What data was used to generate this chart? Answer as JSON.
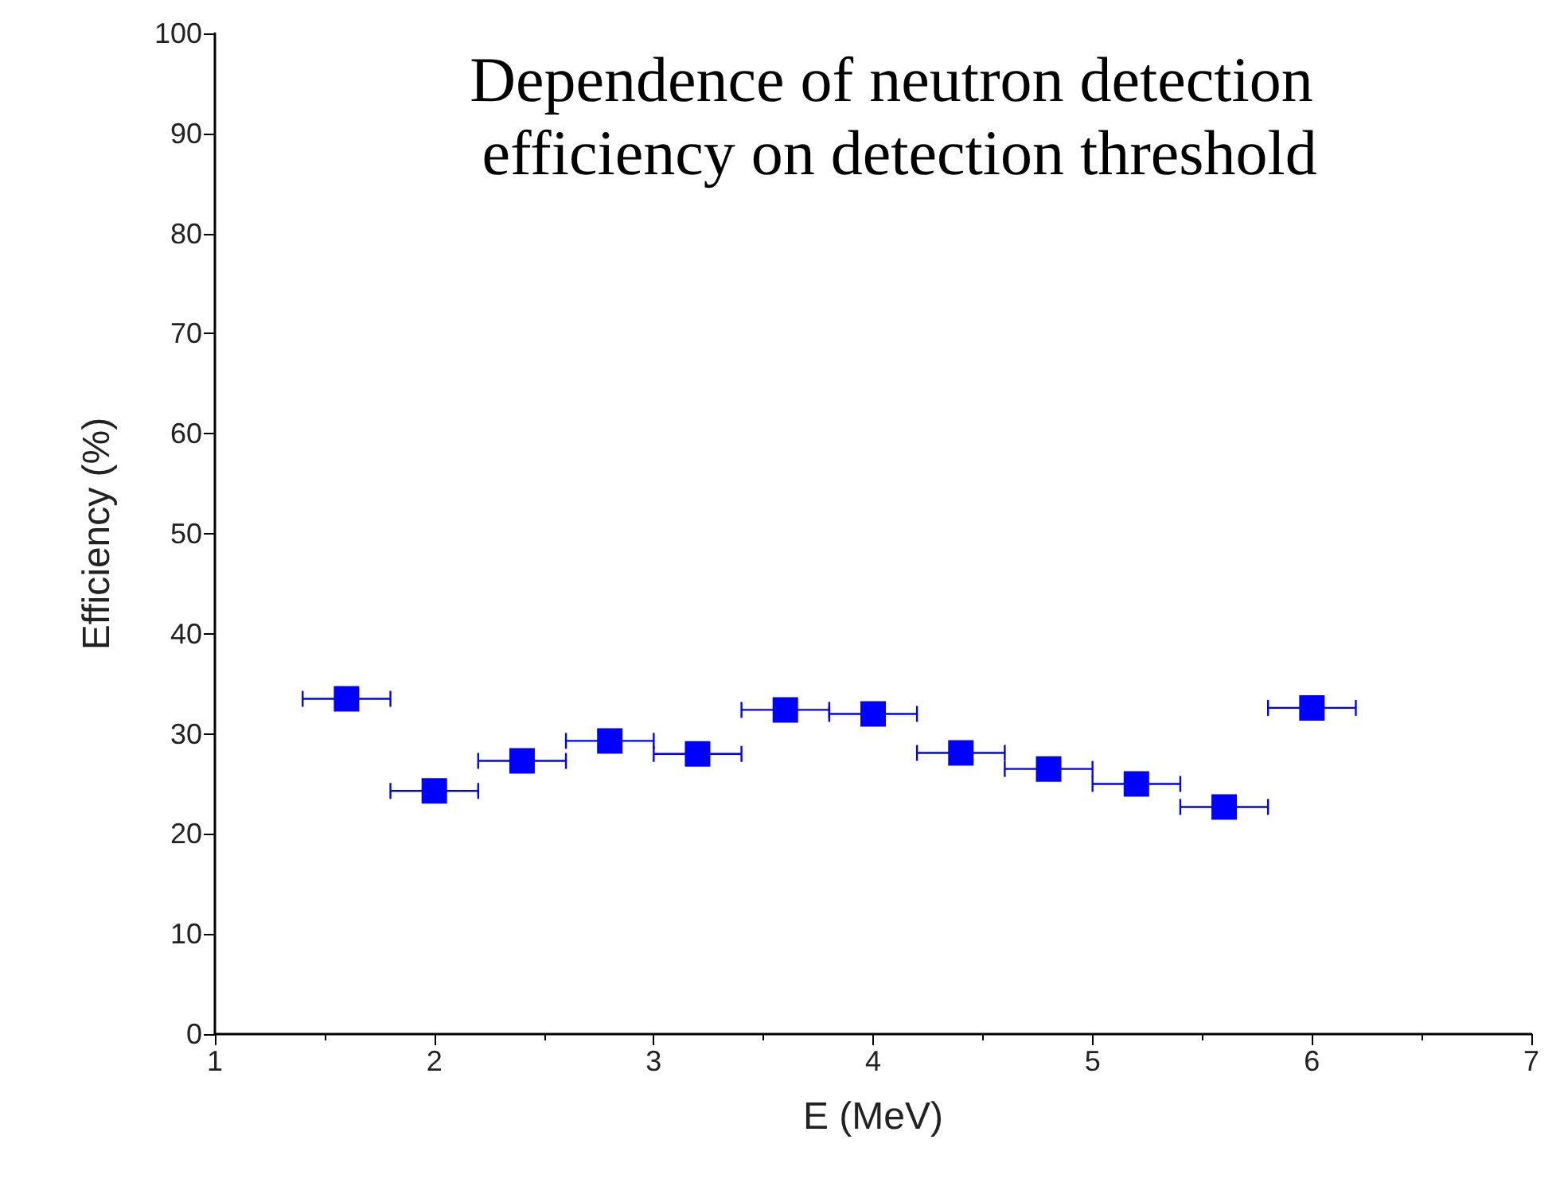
{
  "chart_data": {
    "type": "scatter",
    "title": "Dependence of neutron detection efficiency on detection threshold",
    "xlabel": "E (MeV)",
    "ylabel": "Efficiency (%)",
    "x": [
      1.6,
      2.0,
      2.4,
      2.8,
      3.2,
      3.6,
      4.0,
      4.4,
      4.8,
      5.2,
      5.6,
      6.0
    ],
    "series": [
      {
        "color": "#0000ff",
        "values": [
          33.5,
          24.3,
          27.3,
          29.3,
          28.0,
          32.4,
          32.0,
          28.1,
          26.5,
          25.0,
          22.7,
          32.6
        ],
        "xerrors": [
          0.2,
          0.2,
          0.2,
          0.2,
          0.2,
          0.2,
          0.2,
          0.2,
          0.2,
          0.2,
          0.2,
          0.2
        ]
      }
    ],
    "xlim": [
      1,
      7
    ],
    "xticks": [
      1,
      2,
      3,
      4,
      5,
      6,
      7
    ],
    "ylim": [
      0,
      100
    ],
    "yticks": [
      0,
      10,
      20,
      30,
      40,
      50,
      60,
      70,
      80,
      90,
      100
    ],
    "marker": "square"
  }
}
